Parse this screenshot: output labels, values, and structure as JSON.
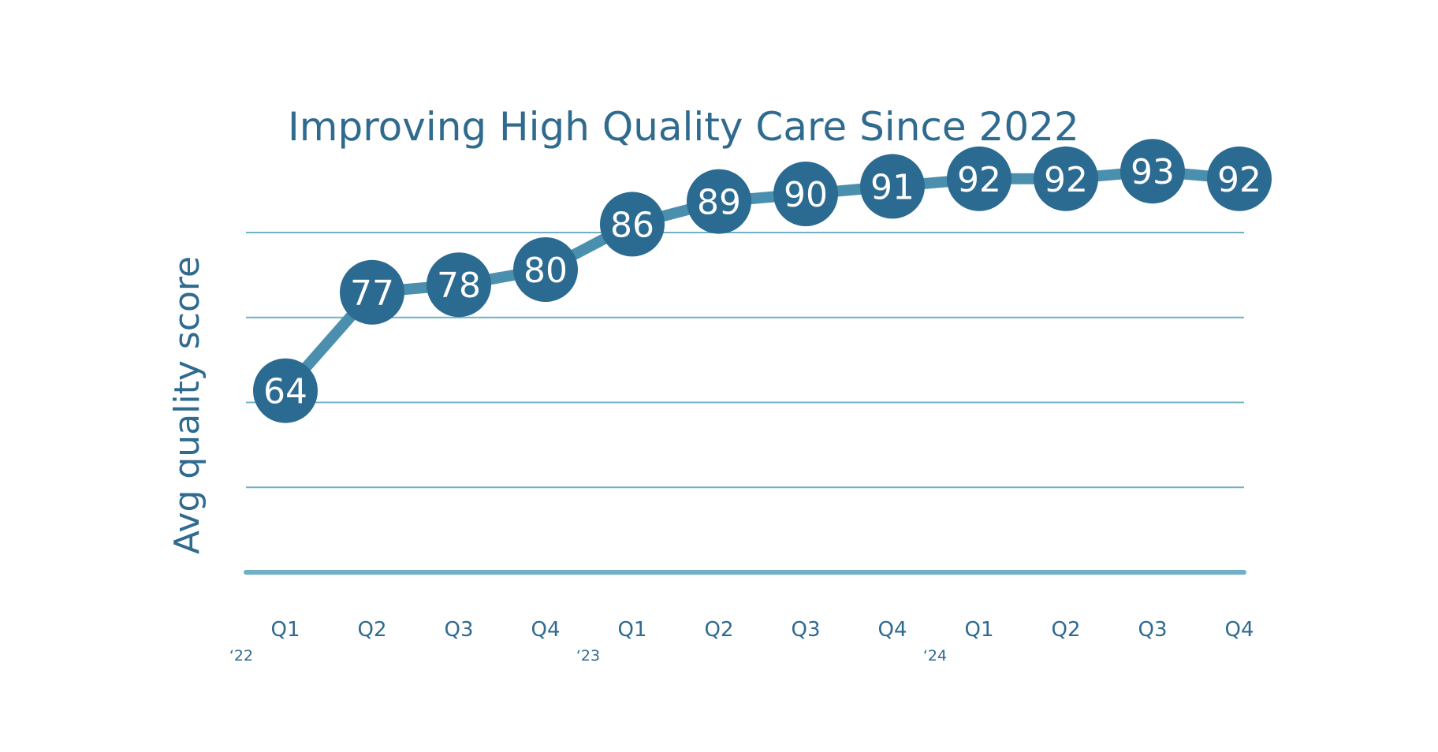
{
  "chart_data": {
    "type": "line",
    "title": "Improving High Quality Care Since 2022",
    "xlabel": "",
    "ylabel": "Avg quality score",
    "categories": [
      "Q1",
      "Q2",
      "Q3",
      "Q4",
      "Q1",
      "Q2",
      "Q3",
      "Q4",
      "Q1",
      "Q2",
      "Q3",
      "Q4"
    ],
    "year_labels": [
      {
        "index": 0,
        "label": "‘22"
      },
      {
        "index": 4,
        "label": "‘23"
      },
      {
        "index": 8,
        "label": "‘24"
      }
    ],
    "series": [
      {
        "values": [
          64,
          77,
          78,
          80,
          86,
          89,
          90,
          91,
          92,
          92,
          93,
          92
        ]
      }
    ],
    "ylim": [
      40,
      100
    ],
    "grid": true,
    "legend": "none",
    "colors": {
      "line": "#4a8fad",
      "marker": "#2b6a91",
      "grid": "#6fb0c7",
      "text": "#2f6a8f",
      "marker_text": "#ffffff"
    }
  }
}
